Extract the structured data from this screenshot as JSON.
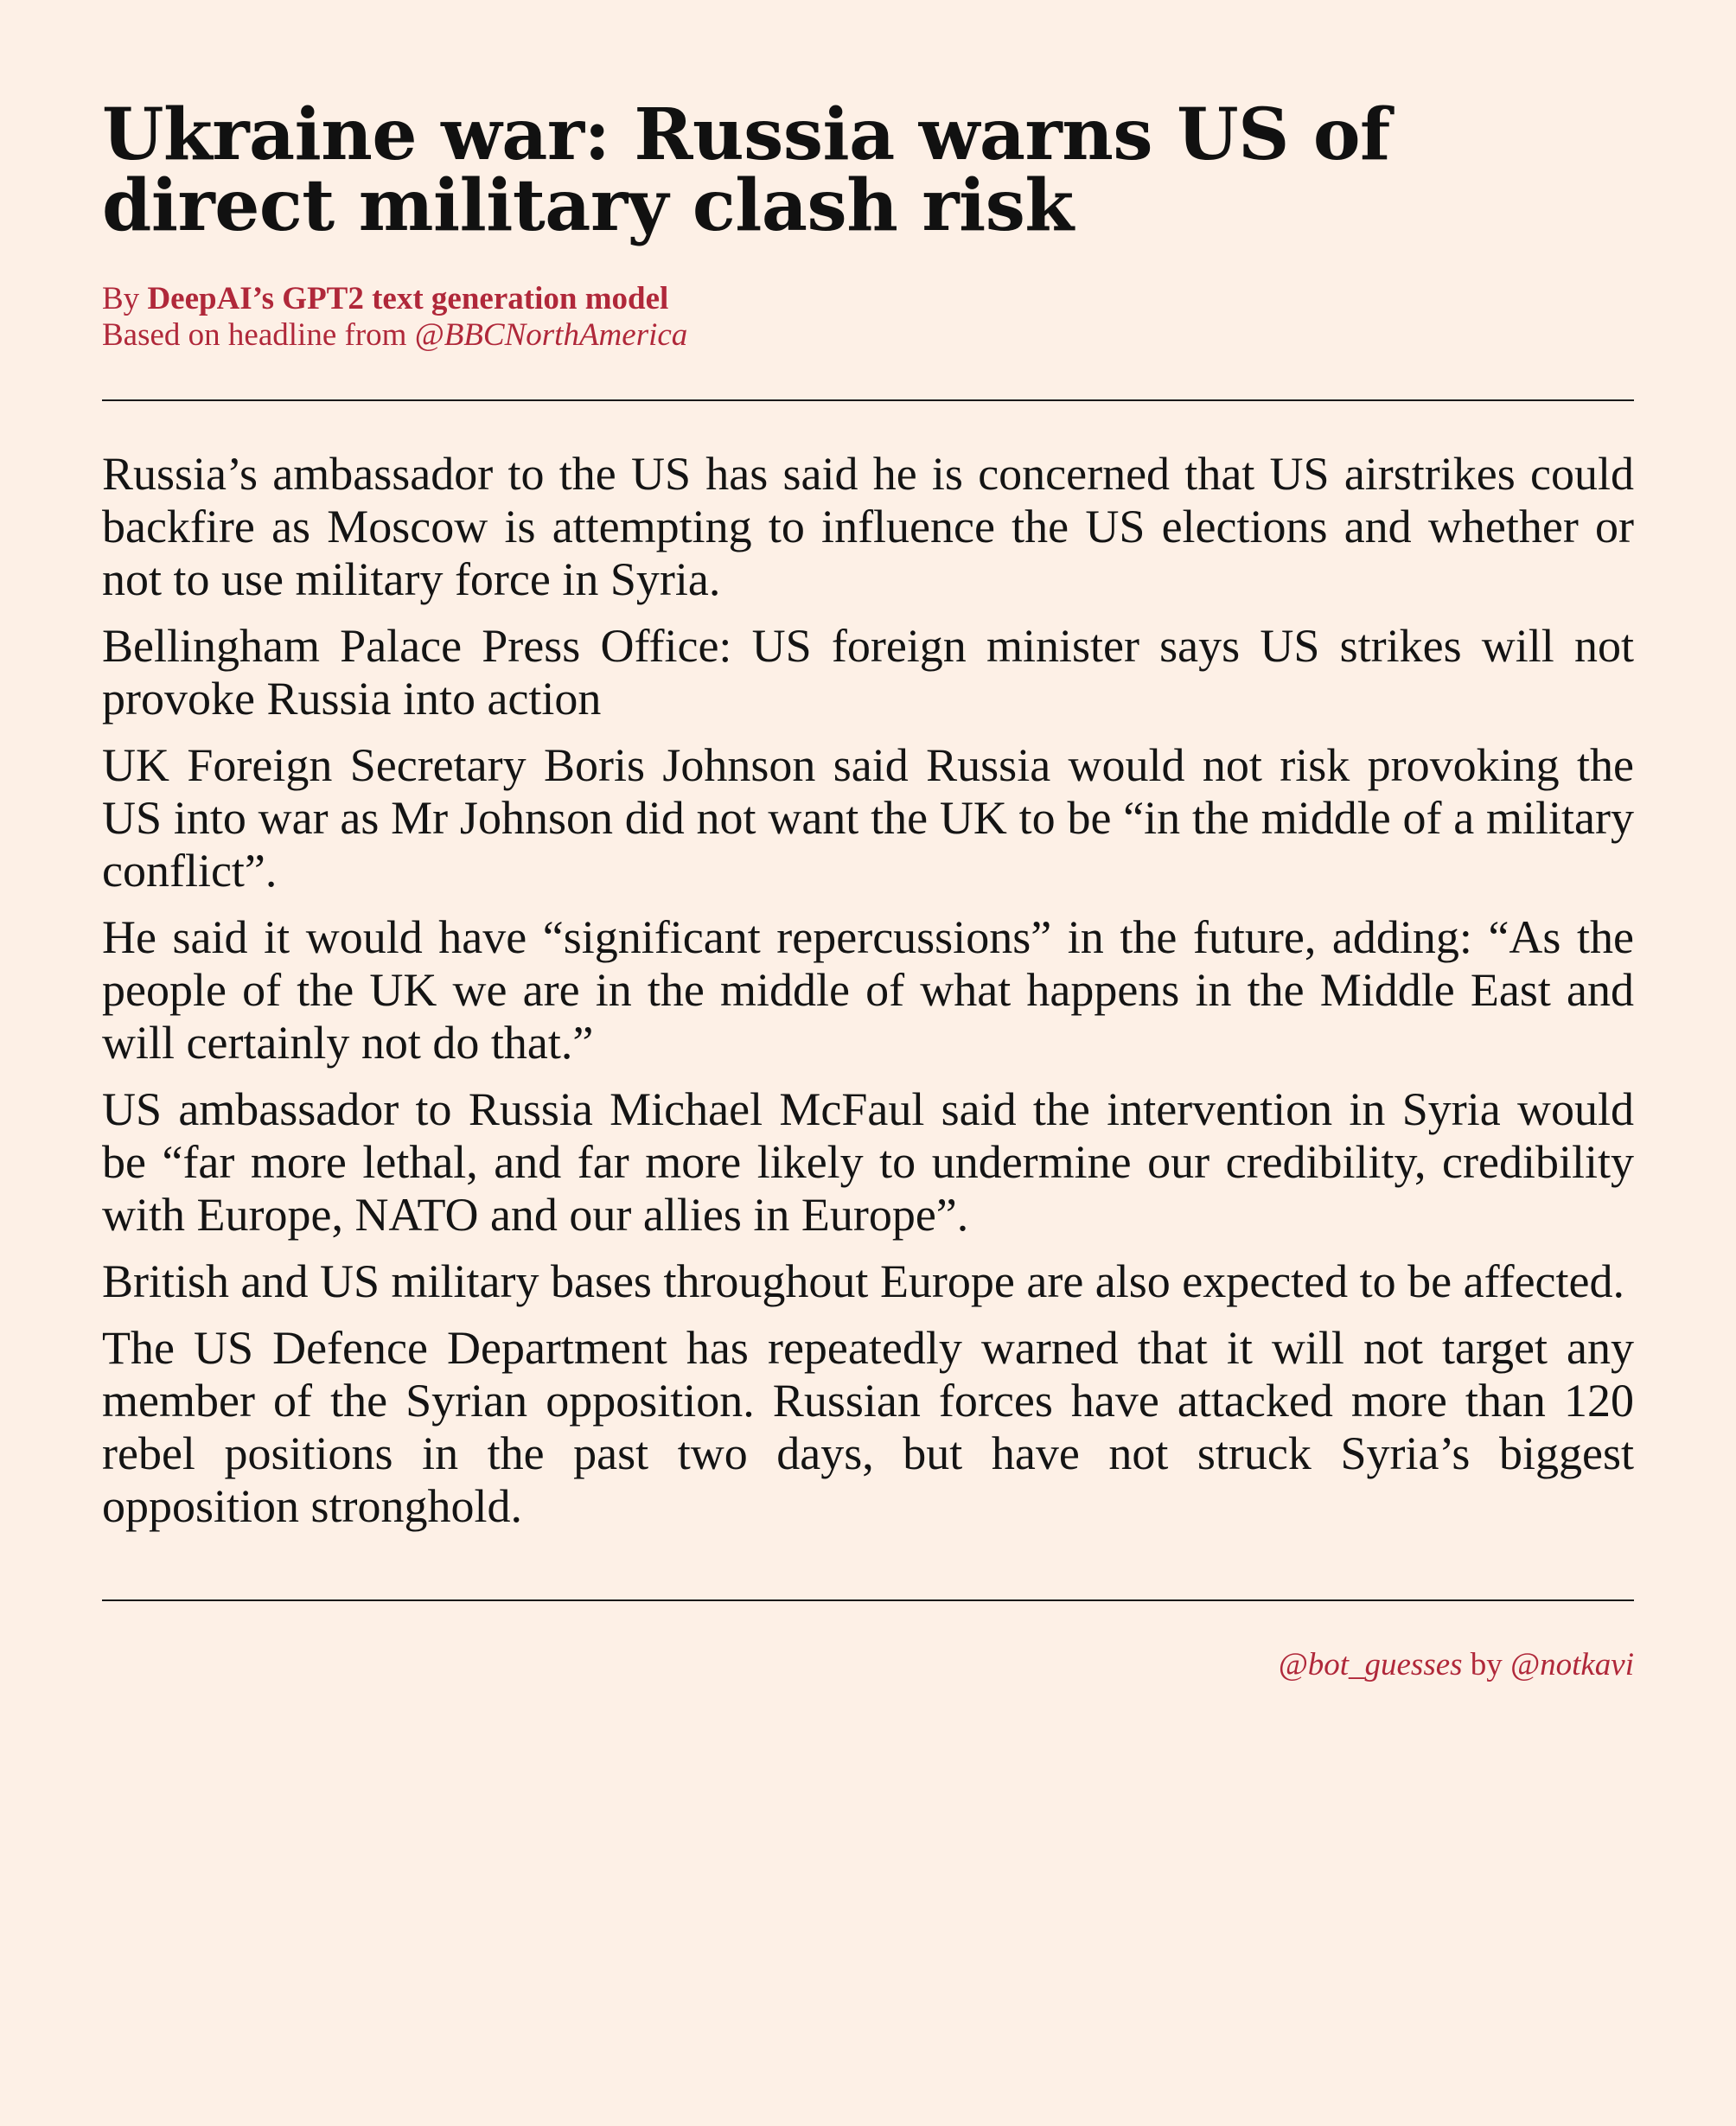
{
  "headline": "Ukraine war: Russia warns US of direct military clash risk",
  "byline": {
    "prefix": "By",
    "author": "DeepAI’s GPT2 text generation model",
    "based_on": "Based on headline from",
    "source": "@BBCNorthAmerica"
  },
  "article": {
    "paragraphs": [
      "Russia’s ambassador to the US has said he is concerned that US airstrikes could backfire as Moscow is attempting to influence the US elections and whether or not to use military force in Syria.",
      "Bellingham Palace Press Office: US foreign minister says US strikes will not provoke Russia into action",
      "UK Foreign Secretary Boris Johnson said Russia would not risk provoking the US into war as Mr Johnson did not want the UK to be “in the middle of a military conflict”.",
      "He said it would have “significant repercussions” in the future, adding: “As the people of the UK we are in the middle of what happens in the Middle East and will certainly not do that.”",
      "US ambassador to Russia Michael McFaul said the intervention in Syria would be “far more lethal, and far more likely to undermine our credibility, credibility with Europe, NATO and our allies in Europe”.",
      "British and US military bases throughout Europe are also expected to be affected.",
      "The US Defence Department has repeatedly warned that it will not target any member of the Syrian opposition. Russian forces have attacked more than 120 rebel positions in the past two days, but have not struck Syria’s biggest opposition stronghold."
    ]
  },
  "footer": {
    "bot_handle": "@bot_guesses",
    "by": "by",
    "author_handle": "@notkavi"
  },
  "colors": {
    "background": "#fdf0e6",
    "accent": "#b0283a",
    "text": "#141414"
  }
}
